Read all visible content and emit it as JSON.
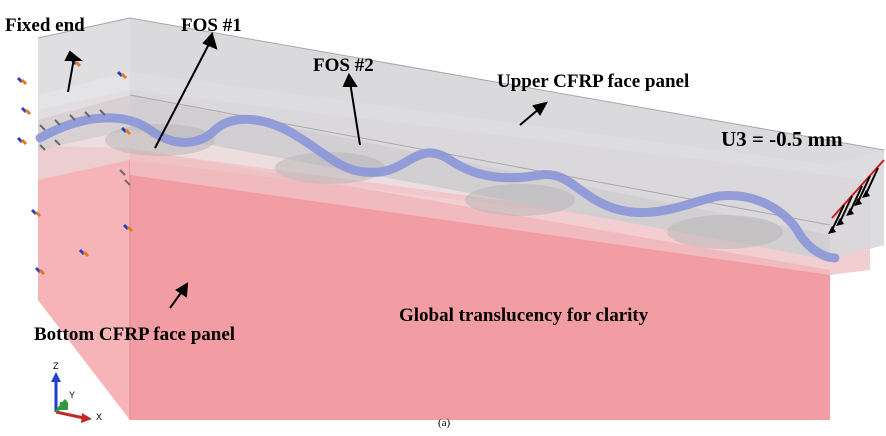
{
  "labels": {
    "fixed_end": "Fixed end",
    "fos1": "FOS #1",
    "fos2": "FOS #2",
    "upper_panel": "Upper CFRP face panel",
    "load": "U3 = -0.5 mm",
    "bottom_panel": "Bottom CFRP face panel",
    "translucency": "Global translucency for clarity"
  },
  "axes": {
    "z": "Z",
    "y": "Y",
    "x": "X"
  },
  "caption": "(a)",
  "colors": {
    "core": "#f4a3a8",
    "panel": "#d4d4d6",
    "fiber": "#8b96d8",
    "load_arrow": "#d01c1c",
    "axis_z": "#1f3fcf",
    "axis_y": "#2f9a3a",
    "axis_x": "#c0282a"
  }
}
